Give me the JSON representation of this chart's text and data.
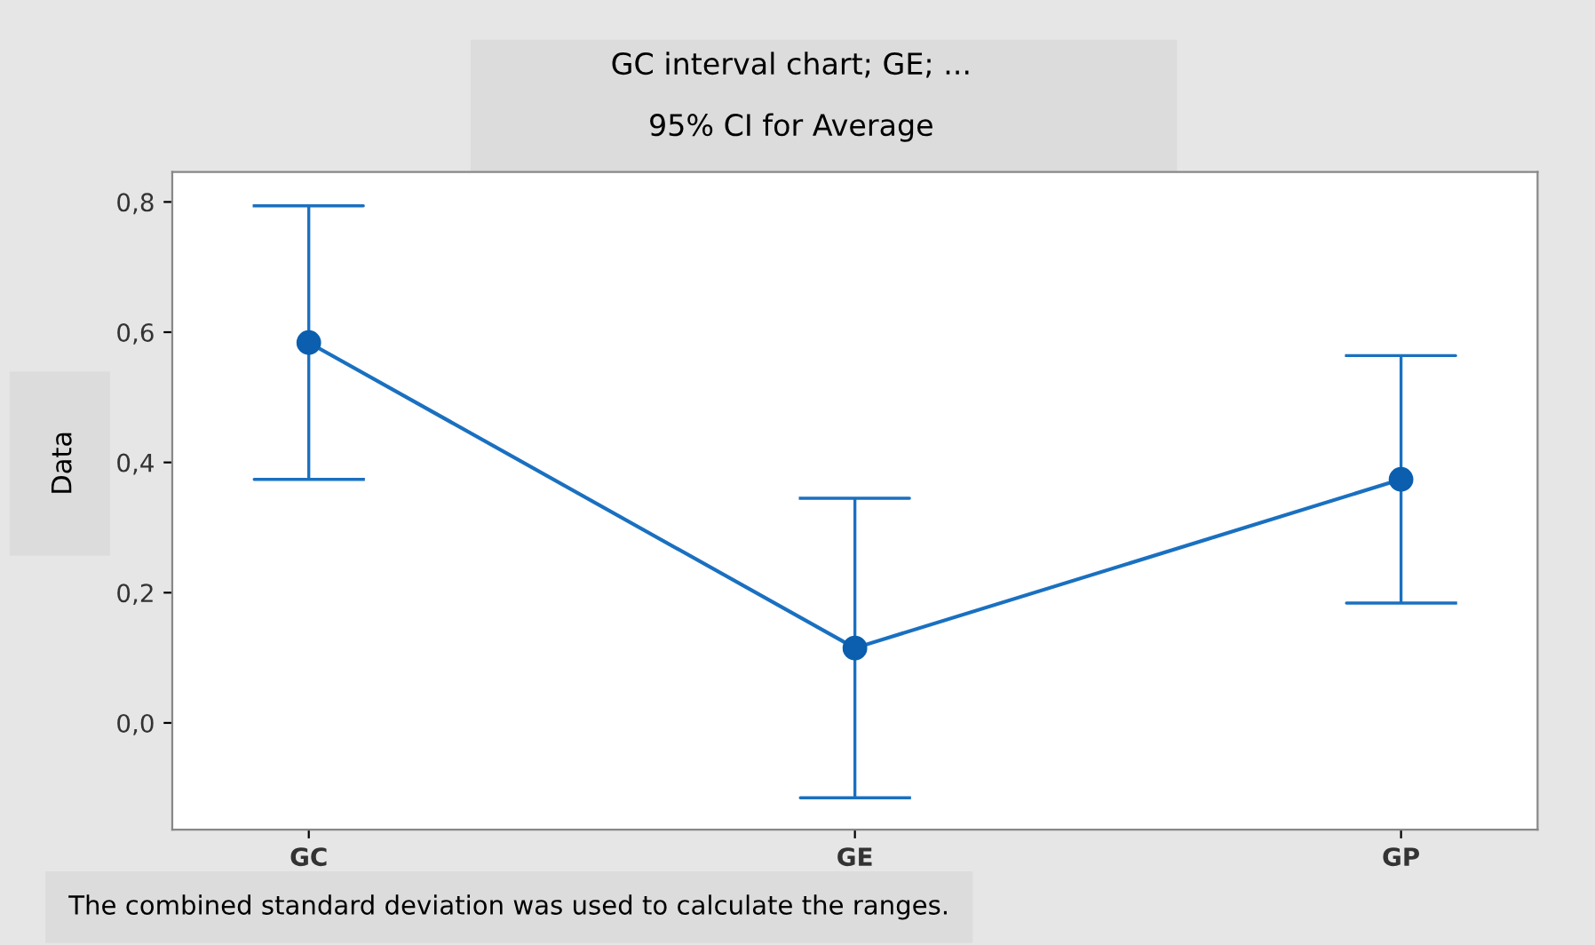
{
  "chart_data": {
    "type": "line",
    "title": "GC interval chart; GE; ...",
    "subtitle": "95% CI for Average",
    "ylabel": "Data",
    "categories": [
      "GC",
      "GE",
      "GP"
    ],
    "values": [
      0.584,
      0.115,
      0.374
    ],
    "color": "#1a70c0",
    "errors": [
      0.21,
      0.23,
      0.19
    ],
    "ylim": [
      -0.164,
      0.846
    ],
    "yticks": [
      {
        "value": 0.0,
        "label": "0,0"
      },
      {
        "value": 0.2,
        "label": "0,2"
      },
      {
        "value": 0.4,
        "label": "0,4"
      },
      {
        "value": 0.6,
        "label": "0,6"
      },
      {
        "value": 0.8,
        "label": "0,8"
      }
    ],
    "marker": "circle",
    "line_style": "solid",
    "grid": false,
    "legend": false,
    "annotations": [
      "The combined standard deviation was used to calculate the ranges."
    ]
  }
}
